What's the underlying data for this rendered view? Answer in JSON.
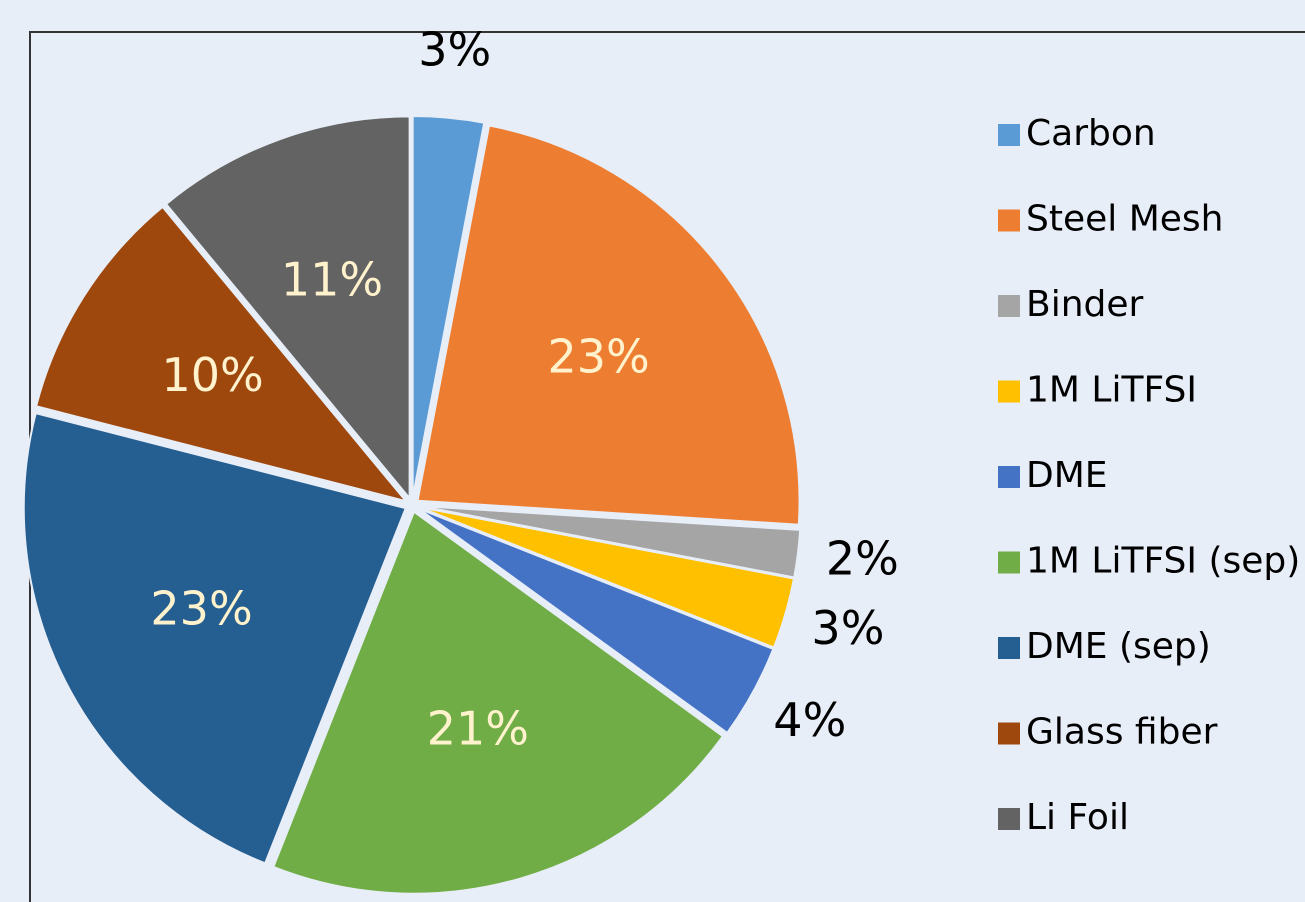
{
  "chart_data": {
    "type": "pie",
    "categories": [
      "Carbon",
      "Steel Mesh",
      "Binder",
      "1M LiTFSI",
      "DME",
      "1M LiTFSI (sep)",
      "DME (sep)",
      "Glass fiber",
      "Li Foil"
    ],
    "values": [
      3,
      23,
      2,
      3,
      4,
      21,
      23,
      10,
      11
    ],
    "value_labels": [
      "3%",
      "23%",
      "2%",
      "3%",
      "4%",
      "21%",
      "23%",
      "10%",
      "11%"
    ],
    "colors": [
      "#5b9bd5",
      "#ed7d31",
      "#a5a5a5",
      "#ffc000",
      "#4472c4",
      "#70ad47",
      "#255e91",
      "#9e480e",
      "#636363"
    ],
    "legend": "right"
  }
}
